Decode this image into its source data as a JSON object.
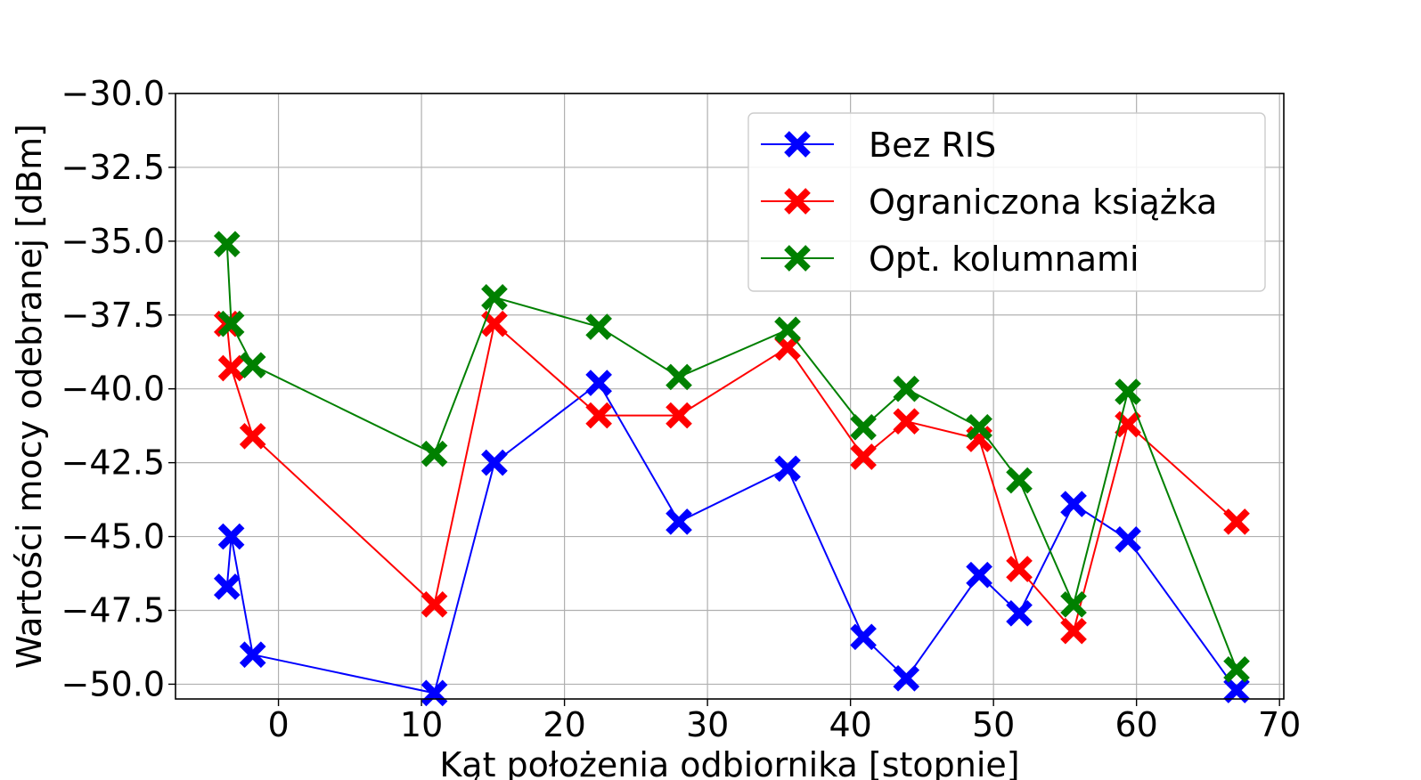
{
  "chart_data": {
    "type": "line",
    "title": "",
    "xlabel": "Kąt położenia odbiornika [stopnie]",
    "ylabel": "Wartości mocy odebranej [dBm]",
    "xlim": [
      -7.2,
      70.3
    ],
    "ylim": [
      -50.5,
      -30.0
    ],
    "xticks": [
      0,
      10,
      20,
      30,
      40,
      50,
      60,
      70
    ],
    "yticks": [
      -30.0,
      -32.5,
      -35.0,
      -37.5,
      -40.0,
      -42.5,
      -45.0,
      -47.5,
      -50.0
    ],
    "xtick_labels": [
      "0",
      "10",
      "20",
      "30",
      "40",
      "50",
      "60",
      "70"
    ],
    "ytick_labels": [
      "−30.0",
      "−32.5",
      "−35.0",
      "−37.5",
      "−40.0",
      "−42.5",
      "−45.0",
      "−47.5",
      "−50.0"
    ],
    "grid": true,
    "legend_position": "top-right",
    "marker": "X",
    "series": [
      {
        "name": "Bez RIS",
        "color": "#0000ff",
        "x": [
          -3.6,
          -3.3,
          -1.8,
          10.9,
          15.1,
          22.4,
          28.0,
          35.6,
          40.9,
          43.9,
          49.0,
          51.8,
          55.6,
          59.4,
          67.0
        ],
        "y": [
          -46.7,
          -45.0,
          -49.0,
          -50.3,
          -42.5,
          -39.8,
          -44.5,
          -42.7,
          -48.4,
          -49.8,
          -46.3,
          -47.6,
          -43.9,
          -45.1,
          -50.2
        ]
      },
      {
        "name": "Ograniczona książka",
        "color": "#ff0000",
        "x": [
          -3.6,
          -3.3,
          -1.8,
          10.9,
          15.1,
          22.4,
          28.0,
          35.6,
          40.9,
          43.9,
          49.0,
          51.8,
          55.6,
          59.4,
          67.0
        ],
        "y": [
          -37.8,
          -39.3,
          -41.6,
          -47.3,
          -37.8,
          -40.9,
          -40.9,
          -38.6,
          -42.3,
          -41.1,
          -41.7,
          -46.1,
          -48.2,
          -41.2,
          -44.5
        ]
      },
      {
        "name": "Opt. kolumnami",
        "color": "#008000",
        "x": [
          -3.6,
          -3.3,
          -1.8,
          10.9,
          15.1,
          22.4,
          28.0,
          35.6,
          40.9,
          43.9,
          49.0,
          51.8,
          55.6,
          59.4,
          67.0
        ],
        "y": [
          -35.1,
          -37.8,
          -39.2,
          -42.2,
          -36.9,
          -37.9,
          -39.6,
          -38.0,
          -41.3,
          -40.0,
          -41.3,
          -43.1,
          -47.3,
          -40.1,
          -49.5
        ]
      }
    ]
  }
}
